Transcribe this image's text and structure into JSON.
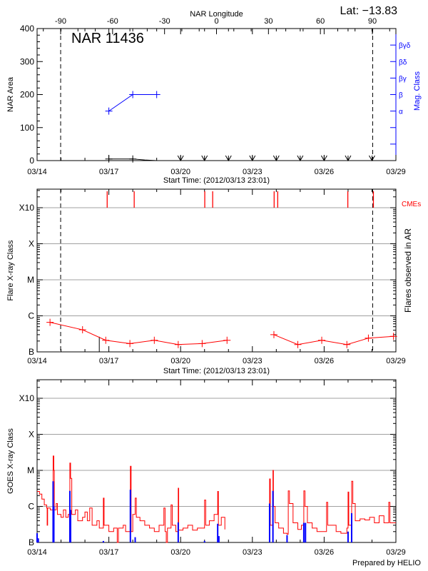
{
  "header": {
    "lat_label": "Lat: −13.83",
    "prepared_by": "Prepared by HELIO"
  },
  "colors": {
    "flare": "#ff0000",
    "mag_class": "#0000ff",
    "goes_long": "#ff0000",
    "goes_short": "#0000ff",
    "grid": "#a0a0a0",
    "axes": "#000000"
  },
  "chart_data": [
    {
      "type": "line",
      "title": "NAR 11436",
      "xlabel": "Start Time: (2012/03/13 23:01)",
      "xlim": [
        "03/14 00:00",
        "03/29 00:00"
      ],
      "x_ticks": [
        "03/14",
        "03/17",
        "03/20",
        "03/23",
        "03/26",
        "03/29"
      ],
      "top_axis": {
        "label": "NAR Longitude",
        "ticks": [
          "-90",
          "-60",
          "-30",
          "0",
          "30",
          "60",
          "90"
        ]
      },
      "ylabel": "NAR Area",
      "ylim": [
        0,
        400
      ],
      "y_ticks": [
        "0",
        "100",
        "200",
        "300",
        "400"
      ],
      "right_axis": {
        "label": "Mag. Class",
        "ticks": [
          {
            "value": 150,
            "label": "α"
          },
          {
            "value": 200,
            "label": "β"
          },
          {
            "value": 250,
            "label": "βγ"
          },
          {
            "value": 300,
            "label": "βδ"
          },
          {
            "value": 350,
            "label": "βγδ"
          }
        ]
      },
      "limb_lines": [
        "03/14 23:38",
        "03/28 00:43"
      ],
      "area_series": {
        "x": [
          "03/17 00:00",
          "03/18 00:00",
          "03/18 12:00",
          "03/19 00:00"
        ],
        "y": [
          5,
          5,
          2,
          0
        ]
      },
      "no_data_markers": [
        "03/20 00:00",
        "03/21 00:00",
        "03/22 00:00",
        "03/23 00:00",
        "03/24 00:00",
        "03/25 00:00",
        "03/26 00:00",
        "03/27 00:00",
        "03/28 00:00"
      ],
      "mag_class_series": {
        "x": [
          "03/17 00:00",
          "03/18 00:00",
          "03/19 00:00"
        ],
        "y": [
          "α",
          "β",
          "β"
        ]
      }
    },
    {
      "type": "line",
      "xlabel": "Start Time: (2012/03/13 23:01)",
      "x_ticks": [
        "03/14",
        "03/17",
        "03/20",
        "03/23",
        "03/26",
        "03/29"
      ],
      "ylabel": "Flare X-ray Class",
      "right_label": "Flares observed in AR",
      "cme_label": "CMEs",
      "yscale": "log",
      "ylim": [
        1e-07,
        0.00316
      ],
      "y_ticks": [
        {
          "value": 1e-07,
          "label": "B"
        },
        {
          "value": 1e-06,
          "label": "C"
        },
        {
          "value": 1e-05,
          "label": "M"
        },
        {
          "value": 0.0001,
          "label": "X"
        },
        {
          "value": 0.001,
          "label": "X10"
        }
      ],
      "grid": true,
      "limb_lines": [
        "03/14 23:38",
        "03/28 00:43"
      ],
      "event_line": "03/16 14:24",
      "flare_segments": [
        {
          "x": [
            "03/14 12:58",
            "03/15 21:36",
            "03/16 20:53",
            "03/17 21:07",
            "03/18 21:36",
            "03/19 21:36",
            "03/20 21:36",
            "03/21 22:34"
          ],
          "y": [
            6.6e-07,
            4.1e-07,
            2.1e-07,
            1.7e-07,
            2.1e-07,
            1.6e-07,
            1.7e-07,
            2.1e-07
          ]
        },
        {
          "x": [
            "03/23 21:36",
            "03/24 21:36",
            "03/25 21:36",
            "03/26 22:48",
            "03/27 20:24",
            "03/28 21:36"
          ],
          "y": [
            3e-07,
            1.6e-07,
            2.1e-07,
            1.6e-07,
            2.4e-07,
            2.7e-07
          ]
        }
      ],
      "cmes": [
        "03/16 22:19",
        "03/18 01:26",
        "03/21 00:14",
        "03/21 08:10",
        "03/23 21:50",
        "03/24 01:26",
        "03/26 23:46",
        "03/28 01:26"
      ]
    },
    {
      "type": "line",
      "x_ticks": [
        "03/14",
        "03/17",
        "03/20",
        "03/23",
        "03/26",
        "03/29"
      ],
      "ylabel": "GOES X-ray Class",
      "yscale": "log",
      "ylim": [
        1e-07,
        0.00316
      ],
      "y_ticks": [
        {
          "value": 1e-07,
          "label": "B"
        },
        {
          "value": 1e-06,
          "label": "C"
        },
        {
          "value": 1e-05,
          "label": "M"
        },
        {
          "value": 0.0001,
          "label": "X"
        },
        {
          "value": 0.001,
          "label": "X10"
        }
      ],
      "grid": true,
      "long_channel_segments": [
        {
          "x": [
            "03/14 00:00",
            "03/14 02:24",
            "03/14 04:48",
            "03/14 07:12",
            "03/14 09:36",
            "03/14 10:05",
            "03/14 10:34",
            "03/14 13:12",
            "03/14 16:05",
            "03/14 16:48",
            "03/14 17:17",
            "03/14 19:12",
            "03/14 20:24",
            "03/15 00:00",
            "03/15 02:24",
            "03/15 04:48",
            "03/15 07:12",
            "03/15 08:53",
            "03/15 09:36",
            "03/15 10:48",
            "03/15 14:24",
            "03/15 16:48",
            "03/15 21:36",
            "03/16 00:00",
            "03/16 02:24",
            "03/16 04:48",
            "03/16 07:12",
            "03/16 12:00",
            "03/16 14:24",
            "03/16 18:29",
            "03/16 19:12",
            "03/17 00:00",
            "03/17 04:48",
            "03/17 08:24",
            "03/17 09:36",
            "03/17 14:24",
            "03/17 16:48",
            "03/17 21:36",
            "03/17 22:19",
            "03/18 00:00",
            "03/18 02:24",
            "03/18 03:36",
            "03/18 07:12",
            "03/18 12:00",
            "03/18 16:48",
            "03/18 21:36",
            "03/19 02:24",
            "03/19 07:12",
            "03/19 08:24",
            "03/19 09:36",
            "03/19 10:48",
            "03/19 14:24",
            "03/19 15:36",
            "03/19 19:12",
            "03/19 21:36",
            "03/19 22:05",
            "03/20 02:24",
            "03/20 07:12",
            "03/20 12:00",
            "03/20 16:48",
            "03/20 21:36",
            "03/21 00:00",
            "03/21 01:12",
            "03/21 04:48",
            "03/21 09:36",
            "03/21 13:12",
            "03/21 13:55",
            "03/21 16:48",
            "03/21 20:24"
          ],
          "y": [
            2.6e-06,
            2.2e-06,
            1.6e-06,
            1.1e-06,
            9e-07,
            3e-07,
            9e-07,
            8e-07,
            2.5e-05,
            1e-05,
            8e-07,
            1.2e-06,
            6e-07,
            5e-07,
            8e-07,
            5e-07,
            6e-07,
            1.6e-05,
            6e-06,
            6e-07,
            8e-07,
            4e-07,
            5e-07,
            7e-07,
            4e-07,
            9e-07,
            3e-07,
            4e-07,
            2.5e-07,
            1.7e-06,
            3e-07,
            2e-07,
            2.5e-07,
            1e-07,
            2.5e-07,
            3e-07,
            2e-07,
            1.3e-05,
            2e-07,
            6e-07,
            1.7e-06,
            5e-07,
            4e-07,
            3e-07,
            2.5e-07,
            2e-07,
            3e-07,
            9e-07,
            2e-07,
            9e-08,
            2.5e-07,
            1.1e-06,
            3e-07,
            2e-07,
            3.2e-06,
            2.2e-07,
            2.5e-07,
            3e-07,
            2.2e-07,
            2.5e-07,
            2.5e-07,
            1.5e-06,
            3e-07,
            4e-07,
            6e-07,
            2.6e-06,
            3e-07,
            5e-07,
            2.3e-07
          ]
        },
        {
          "x": [
            "03/23 16:48",
            "03/23 17:17",
            "03/23 18:00",
            "03/23 20:38",
            "03/23 21:07",
            "03/23 22:48",
            "03/24 02:24",
            "03/24 07:12",
            "03/24 10:48",
            "03/24 12:00",
            "03/24 13:12",
            "03/24 16:48",
            "03/24 21:36",
            "03/25 01:12",
            "03/25 03:36",
            "03/25 04:48",
            "03/25 07:12",
            "03/25 12:00",
            "03/25 16:48",
            "03/25 21:36",
            "03/26 02:24",
            "03/26 03:36",
            "03/26 07:12",
            "03/26 12:00",
            "03/26 16:48",
            "03/26 22:48",
            "03/27 00:00",
            "03/27 00:43",
            "03/27 03:36",
            "03/27 04:48",
            "03/27 07:12",
            "03/27 12:00",
            "03/27 16:48",
            "03/27 21:36",
            "03/28 02:24",
            "03/28 07:12",
            "03/28 12:00",
            "03/28 16:48",
            "03/28 18:00",
            "03/29 00:00"
          ],
          "y": [
            3.5e-07,
            5.8e-06,
            3e-07,
            1e-05,
            1e-06,
            3.5e-07,
            2.5e-07,
            1.8e-07,
            1.7e-07,
            2.7e-06,
            1.2e-06,
            3.5e-07,
            2.3e-07,
            3e-07,
            2.7e-06,
            1e-06,
            3.5e-07,
            2.5e-07,
            2e-07,
            2e-07,
            1.3e-06,
            3e-07,
            3e-07,
            2e-07,
            1.8e-07,
            2.5e-07,
            2.5e-06,
            3e-07,
            5e-06,
            1.2e-06,
            4e-07,
            4.5e-07,
            4.2e-07,
            5e-07,
            3.5e-07,
            5.5e-07,
            3.5e-07,
            1.3e-06,
            3.5e-07,
            3.5e-07
          ]
        }
      ],
      "short_channel_peaks": {
        "x": [
          "03/14 00:00",
          "03/14 01:12",
          "03/14 16:05",
          "03/14 16:48",
          "03/15 08:53",
          "03/15 09:36",
          "03/16 18:29",
          "03/17 21:36",
          "03/18 02:24",
          "03/19 21:36",
          "03/21 00:00",
          "03/21 13:12",
          "03/21 14:24",
          "03/23 17:17",
          "03/23 20:38",
          "03/24 10:48",
          "03/25 03:36",
          "03/25 05:17",
          "03/27 00:00",
          "03/27 03:36"
        ],
        "y": [
          1.8e-07,
          1.3e-07,
          5e-06,
          1e-06,
          2.7e-06,
          8e-07,
          1.1e-07,
          2.9e-06,
          1.4e-07,
          3.6e-07,
          1.1e-07,
          3.3e-07,
          1.5e-07,
          1.2e-06,
          2.7e-06,
          1.6e-07,
          3.5e-07,
          3.5e-07,
          2e-07,
          6.5e-07
        ]
      }
    }
  ]
}
